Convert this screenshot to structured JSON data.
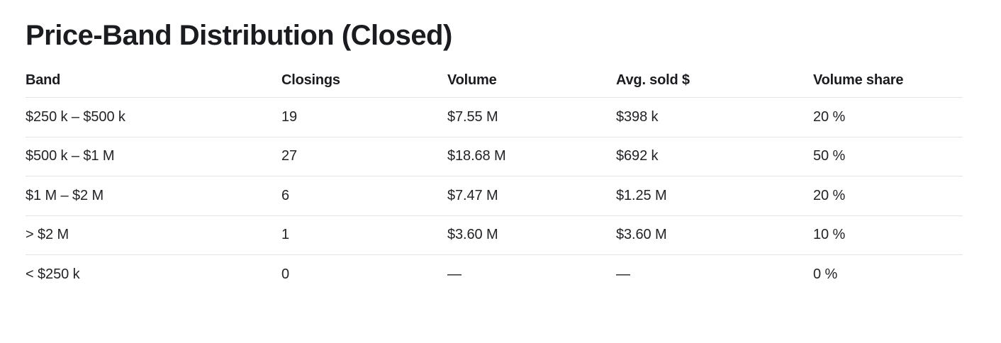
{
  "page": {
    "title": "Price-Band Distribution (Closed)"
  },
  "chart_data": {
    "type": "table",
    "title": "Price-Band Distribution (Closed)",
    "columns": [
      "Band",
      "Closings",
      "Volume",
      "Avg. sold $",
      "Volume share"
    ],
    "rows": [
      [
        "$250 k – $500 k",
        "19",
        "$7.55 M",
        "$398 k",
        "20 %"
      ],
      [
        "$500 k – $1 M",
        "27",
        "$18.68 M",
        "$692 k",
        "50 %"
      ],
      [
        "$1 M – $2 M",
        "6",
        "$7.47 M",
        "$1.25 M",
        "20 %"
      ],
      [
        "> $2 M",
        "1",
        "$3.60 M",
        "$3.60 M",
        "10 %"
      ],
      [
        "< $250 k",
        "0",
        "—",
        "—",
        "0 %"
      ]
    ],
    "numeric": {
      "bands": [
        "$250k-$500k",
        "$500k-$1M",
        "$1M-$2M",
        ">$2M",
        "<$250k"
      ],
      "closings": [
        19,
        27,
        6,
        1,
        0
      ],
      "volume_musd": [
        7.55,
        18.68,
        7.47,
        3.6,
        null
      ],
      "avg_sold_usd": [
        398000,
        692000,
        1250000,
        3600000,
        null
      ],
      "volume_share_pct": [
        20,
        50,
        20,
        10,
        0
      ]
    }
  },
  "colors": {
    "background": "#ffffff",
    "text": "#1d1e21",
    "title_text": "#1b1c1f",
    "divider": "#e4e4e4"
  }
}
